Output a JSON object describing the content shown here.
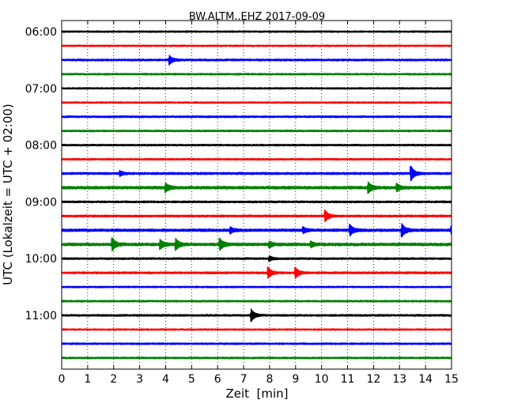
{
  "chart_data": {
    "type": "line",
    "subtype": "helicorder",
    "title": "BW.ALTM..EHZ 2017-09-09",
    "xlabel": "Zeit  [min]",
    "ylabel": "UTC (Lokalzeit = UTC + 02:00)",
    "xlim": [
      0,
      15
    ],
    "x_ticks": [
      0,
      1,
      2,
      3,
      4,
      5,
      6,
      7,
      8,
      9,
      10,
      11,
      12,
      13,
      14,
      15
    ],
    "y_tick_labels": [
      "06:00",
      "07:00",
      "08:00",
      "09:00",
      "10:00",
      "11:00"
    ],
    "trace_colors": [
      "#000000",
      "#ff0000",
      "#0000ff",
      "#008000"
    ],
    "grid": {
      "vertical": true,
      "style": "dotted"
    },
    "traces": [
      {
        "start": "06:00",
        "noise": 1.2,
        "events": []
      },
      {
        "start": "06:15",
        "noise": 1.2,
        "events": []
      },
      {
        "start": "06:30",
        "noise": 1.4,
        "events": [
          {
            "t": 4.15,
            "amp": 5
          }
        ]
      },
      {
        "start": "06:45",
        "noise": 1.3,
        "events": []
      },
      {
        "start": "07:00",
        "noise": 1.2,
        "events": []
      },
      {
        "start": "07:15",
        "noise": 1.2,
        "events": []
      },
      {
        "start": "07:30",
        "noise": 1.4,
        "events": []
      },
      {
        "start": "07:45",
        "noise": 1.3,
        "events": []
      },
      {
        "start": "08:00",
        "noise": 1.3,
        "events": []
      },
      {
        "start": "08:15",
        "noise": 1.3,
        "events": []
      },
      {
        "start": "08:30",
        "noise": 1.6,
        "events": [
          {
            "t": 2.25,
            "amp": 2.5
          },
          {
            "t": 13.45,
            "amp": 8
          }
        ]
      },
      {
        "start": "08:45",
        "noise": 2.0,
        "events": [
          {
            "t": 4.0,
            "amp": 5
          },
          {
            "t": 11.8,
            "amp": 6
          },
          {
            "t": 12.9,
            "amp": 4
          }
        ]
      },
      {
        "start": "09:00",
        "noise": 1.4,
        "events": []
      },
      {
        "start": "09:15",
        "noise": 1.5,
        "events": [
          {
            "t": 10.15,
            "amp": 6
          }
        ]
      },
      {
        "start": "09:30",
        "noise": 1.9,
        "events": [
          {
            "t": 6.5,
            "amp": 3
          },
          {
            "t": 9.3,
            "amp": 3
          },
          {
            "t": 11.1,
            "amp": 6
          },
          {
            "t": 13.1,
            "amp": 7
          },
          {
            "t": 15.0,
            "amp": 4
          }
        ]
      },
      {
        "start": "09:45",
        "noise": 2.0,
        "events": [
          {
            "t": 1.95,
            "amp": 7
          },
          {
            "t": 3.8,
            "amp": 5
          },
          {
            "t": 4.4,
            "amp": 6
          },
          {
            "t": 6.1,
            "amp": 6
          },
          {
            "t": 8.0,
            "amp": 3
          },
          {
            "t": 9.6,
            "amp": 3
          }
        ]
      },
      {
        "start": "10:00",
        "noise": 1.4,
        "events": [
          {
            "t": 8.0,
            "amp": 2.5
          }
        ]
      },
      {
        "start": "10:15",
        "noise": 1.5,
        "events": [
          {
            "t": 7.95,
            "amp": 6
          },
          {
            "t": 9.0,
            "amp": 6
          }
        ]
      },
      {
        "start": "10:30",
        "noise": 1.2,
        "events": []
      },
      {
        "start": "10:45",
        "noise": 1.3,
        "events": []
      },
      {
        "start": "11:00",
        "noise": 1.4,
        "events": [
          {
            "t": 7.3,
            "amp": 7
          }
        ]
      },
      {
        "start": "11:15",
        "noise": 1.2,
        "events": []
      },
      {
        "start": "11:30",
        "noise": 1.3,
        "events": []
      },
      {
        "start": "11:45",
        "noise": 1.3,
        "events": []
      }
    ]
  }
}
